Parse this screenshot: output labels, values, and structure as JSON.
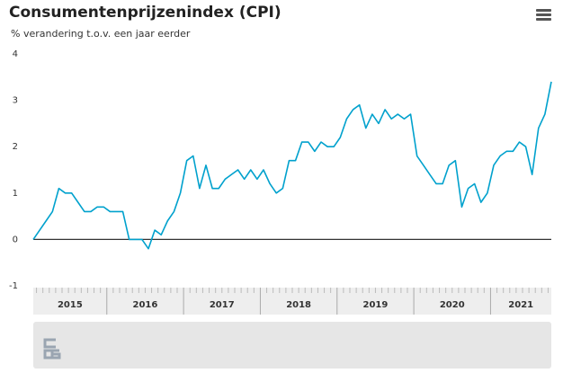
{
  "chart_data": {
    "type": "line",
    "title": "Consumentenprijzenindex (CPI)",
    "subtitle": "% verandering t.o.v. een jaar eerder",
    "year_labels": [
      "2015",
      "2016",
      "2017",
      "2018",
      "2019",
      "2020",
      "2021"
    ],
    "series": [
      {
        "name": "CPI",
        "color": "#00a1cd",
        "values": [
          0,
          0.2,
          0.4,
          0.6,
          1.1,
          1.0,
          1.0,
          0.8,
          0.6,
          0.6,
          0.7,
          0.7,
          0.6,
          0.6,
          0.6,
          0.0,
          0.0,
          0.0,
          -0.2,
          0.2,
          0.1,
          0.4,
          0.6,
          1.0,
          1.7,
          1.8,
          1.1,
          1.6,
          1.1,
          1.1,
          1.3,
          1.4,
          1.5,
          1.3,
          1.5,
          1.3,
          1.5,
          1.2,
          1.0,
          1.1,
          1.7,
          1.7,
          2.1,
          2.1,
          1.9,
          2.1,
          2.0,
          2.0,
          2.2,
          2.6,
          2.8,
          2.9,
          2.4,
          2.7,
          2.5,
          2.8,
          2.6,
          2.7,
          2.6,
          2.7,
          1.8,
          1.6,
          1.4,
          1.2,
          1.2,
          1.6,
          1.7,
          0.7,
          1.1,
          1.2,
          0.8,
          1.0,
          1.6,
          1.8,
          1.9,
          1.9,
          2.1,
          2.0,
          1.4,
          2.4,
          2.7,
          3.4
        ]
      }
    ],
    "ylim": [
      -1,
      4
    ],
    "yticks": [
      -1,
      0,
      1,
      2,
      3,
      4
    ]
  }
}
